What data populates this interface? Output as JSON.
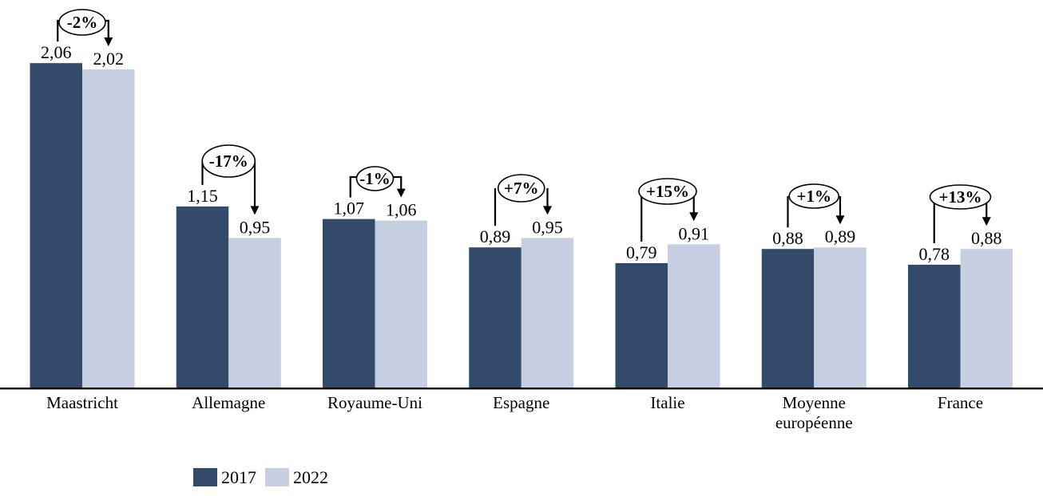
{
  "chart_data": {
    "type": "bar",
    "title": "",
    "categories": [
      "Maastricht",
      "Allemagne",
      "Royaume-Uni",
      "Espagne",
      "Italie",
      "Moyenne européenne",
      "France"
    ],
    "series": [
      {
        "name": "2017",
        "color": "#344A6B",
        "values": [
          2.06,
          1.15,
          1.07,
          0.89,
          0.79,
          0.88,
          0.78
        ]
      },
      {
        "name": "2022",
        "color": "#C6CFE1",
        "values": [
          2.02,
          0.95,
          1.06,
          0.95,
          0.91,
          0.89,
          0.88
        ]
      }
    ],
    "value_labels": [
      [
        "2,06",
        "1,15",
        "1,07",
        "0,89",
        "0,79",
        "0,88",
        "0,78"
      ],
      [
        "2,02",
        "0,95",
        "1,06",
        "0,95",
        "0,91",
        "0,89",
        "0,88"
      ]
    ],
    "annotations": [
      "-2%",
      "-17%",
      "-1%",
      "+7%",
      "+15%",
      "+1%",
      "+13%"
    ],
    "annotation_shape": "ellipse-with-arrow",
    "decimal_separator": ",",
    "xlabel": "",
    "ylabel": "",
    "ylim": [
      0,
      2.46
    ],
    "grid": false,
    "axis_line_color": "#000000",
    "legend": {
      "position": "bottom-left",
      "entries": [
        "2017",
        "2022"
      ]
    }
  }
}
